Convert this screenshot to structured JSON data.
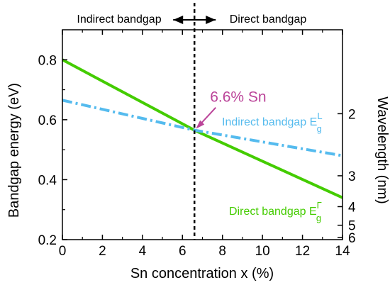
{
  "chart_data": {
    "type": "line",
    "xlabel": "Sn concentration x (%)",
    "ylabel": "Bandgap energy (eV)",
    "y2label": "Wavelength (nm)",
    "xlim": [
      0,
      14
    ],
    "ylim": [
      0.2,
      0.9
    ],
    "x_ticks": [
      0,
      2,
      4,
      6,
      8,
      10,
      12,
      14
    ],
    "y_ticks": [
      0.2,
      0.4,
      0.6,
      0.8
    ],
    "y2_ticks": [
      {
        "label": "2",
        "energy": 0.62
      },
      {
        "label": "3",
        "energy": 0.413
      },
      {
        "label": "4",
        "energy": 0.31
      },
      {
        "label": "5",
        "energy": 0.248
      },
      {
        "label": "6",
        "energy": 0.207
      }
    ],
    "series": [
      {
        "name": "Direct bandgap",
        "color": "#44cc00",
        "style": "solid",
        "x": [
          0,
          6.6,
          14
        ],
        "y": [
          0.8,
          0.565,
          0.34
        ]
      },
      {
        "name": "Indirect bandgap",
        "color": "#55bbee",
        "style": "dash-dot",
        "x": [
          0,
          6.6,
          14
        ],
        "y": [
          0.665,
          0.565,
          0.48
        ]
      }
    ],
    "crossover": {
      "x": 6.6,
      "y": 0.565,
      "label": "6.6% Sn",
      "color": "#bb4499"
    },
    "regions": {
      "left": "Indirect bandgap",
      "right": "Direct bandgap"
    },
    "series_labels": {
      "indirect": {
        "text": "Indirect bandgap E",
        "sup": "L",
        "sub": "g"
      },
      "direct": {
        "text": "Direct bandgap E",
        "sup": "Γ",
        "sub": "g"
      }
    },
    "grid": false
  }
}
